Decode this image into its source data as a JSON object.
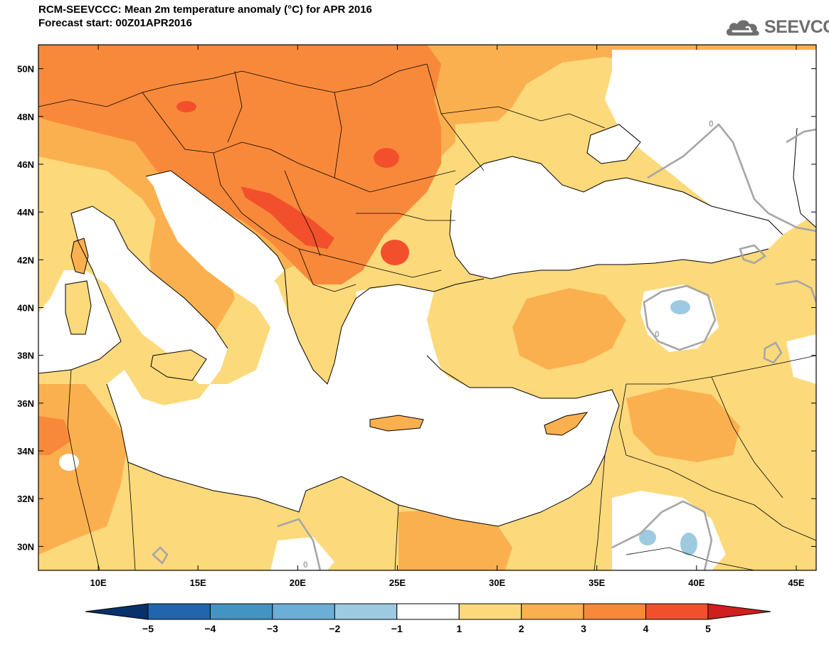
{
  "header": {
    "title": "RCM-SEEVCCC: Mean 2m temperature anomaly (°C) for APR 2016",
    "subtitle": "Forecast start: 00Z01APR2016",
    "logo_text": "SEEVCCC"
  },
  "map": {
    "lon_range": [
      7,
      46
    ],
    "lat_range": [
      29,
      51
    ],
    "lat_labels": [
      "30N",
      "32N",
      "34N",
      "36N",
      "38N",
      "40N",
      "42N",
      "44N",
      "46N",
      "48N",
      "50N"
    ],
    "lat_values": [
      30,
      32,
      34,
      36,
      38,
      40,
      42,
      44,
      46,
      48,
      50
    ],
    "lon_labels": [
      "10E",
      "15E",
      "20E",
      "25E",
      "30E",
      "35E",
      "40E",
      "45E"
    ],
    "lon_values": [
      10,
      15,
      20,
      25,
      30,
      35,
      40,
      45
    ],
    "contour_labels": [
      "0",
      "0",
      "0"
    ],
    "fill_colors": {
      "1_2": "#fcd97b",
      "2_3": "#fbb04f",
      "3_4": "#f9893a",
      "4_5": "#f2502c",
      "-2_-1": "#9ecae1",
      "ocean": "#ffffff"
    }
  },
  "colorbar": {
    "labels": [
      "−5",
      "−4",
      "−3",
      "−2",
      "−1",
      "1",
      "2",
      "3",
      "4",
      "5"
    ],
    "values": [
      -5,
      -4,
      -3,
      -2,
      -1,
      1,
      2,
      3,
      4,
      5
    ],
    "colors": [
      "#08306b",
      "#2166ac",
      "#4393c3",
      "#6baed6",
      "#9ecae1",
      "#ffffff",
      "#fcd97b",
      "#fbb04f",
      "#f9893a",
      "#f2502c",
      "#cf1f1f"
    ]
  }
}
